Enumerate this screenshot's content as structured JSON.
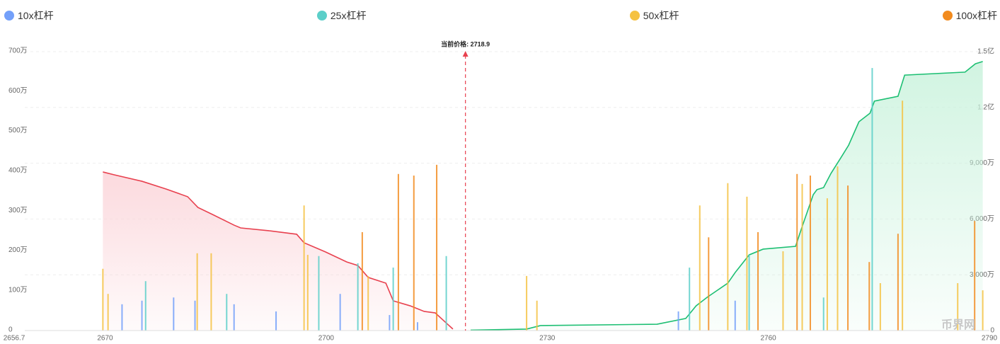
{
  "chart_data": {
    "type": "bar",
    "xlim": [
      2656.7,
      2790
    ],
    "xticks": [
      2656.7,
      2670,
      2700,
      2730,
      2760,
      2790
    ],
    "ylim": [
      0,
      7000000
    ],
    "yticks": [
      0,
      {
        "value": 1000000,
        "label": "100万"
      },
      {
        "value": 2000000,
        "label": "200万"
      },
      {
        "value": 3000000,
        "label": "300万"
      },
      {
        "value": 4000000,
        "label": "400万"
      },
      {
        "value": 5000000,
        "label": "500万"
      },
      {
        "value": 6000000,
        "label": "600万"
      },
      {
        "value": 7000000,
        "label": "700万"
      }
    ],
    "y2lim": [
      0,
      150000000
    ],
    "y2ticks": [
      0,
      {
        "value": 30000000,
        "label": "3,000万"
      },
      {
        "value": 60000000,
        "label": "6,000万"
      },
      {
        "value": 90000000,
        "label": "9,000万"
      },
      {
        "value": 120000000,
        "label": "1.2亿"
      },
      {
        "value": 150000000,
        "label": "1.5亿"
      }
    ],
    "grid": true,
    "annotation": {
      "label": "当前价格: 2718.9",
      "x": 2718.9,
      "color": "#e8414f"
    },
    "watermark": "币界网",
    "series": [
      {
        "name": "10x杠杆",
        "type": "bar",
        "color": "#73a0fa",
        "x": [
          2672.3,
          2675,
          2679.3,
          2682.2,
          2687.5,
          2693.2,
          2701.9,
          2708.6,
          2712.4,
          2747.8,
          2755.5
        ],
        "values": [
          660000,
          750000,
          830000,
          750000,
          660000,
          480000,
          920000,
          390000,
          210000,
          480000,
          750000
        ]
      },
      {
        "name": "25x杠杆",
        "type": "bar",
        "color": "#5ccfc9",
        "x": [
          2675.5,
          2686.5,
          2699,
          2704.3,
          2709.1,
          2716.3,
          2749.3,
          2757.4,
          2767.5,
          2774.1
        ],
        "values": [
          1240000,
          920000,
          1870000,
          1690000,
          1580000,
          1870000,
          1580000,
          1900000,
          830000,
          6590000
        ]
      },
      {
        "name": "50x杠杆",
        "type": "bar",
        "color": "#f5c242",
        "x": [
          2669.7,
          2670.4,
          2682.5,
          2684.4,
          2697,
          2697.5,
          2705.7,
          2727.2,
          2728.6,
          2750.7,
          2754.5,
          2757.1,
          2762,
          2764.6,
          2768,
          2769.4,
          2775.2,
          2778.2,
          2785.7,
          2789.1
        ],
        "values": [
          1550000,
          920000,
          1940000,
          1940000,
          3140000,
          1900000,
          1370000,
          1370000,
          750000,
          3140000,
          3700000,
          3360000,
          1990000,
          3680000,
          3320000,
          4120000,
          1190000,
          5770000,
          1190000,
          1010000
        ]
      },
      {
        "name": "100x杠杆",
        "type": "bar",
        "color": "#f28b1e",
        "x": [
          2704.9,
          2709.8,
          2711.9,
          2715,
          2751.9,
          2758.6,
          2763.9,
          2765.7,
          2770.8,
          2773.7,
          2777.6,
          2788
        ],
        "values": [
          2470000,
          3930000,
          3890000,
          4160000,
          2340000,
          2470000,
          3930000,
          3890000,
          3640000,
          1720000,
          2430000,
          2750000
        ]
      },
      {
        "type": "line",
        "axis": "y2",
        "color": "#e8414f",
        "fill": "#fbd3d8",
        "x": [
          2669.7,
          2671.2,
          2675,
          2678.3,
          2681.2,
          2682.6,
          2684.6,
          2687.5,
          2688.4,
          2692.2,
          2696,
          2697,
          2699.9,
          2702.8,
          2704.3,
          2705.7,
          2708.1,
          2709.1,
          2711.4,
          2713.3,
          2714.8,
          2717.2
        ],
        "values": [
          85300000,
          83800000,
          80300000,
          76100000,
          72000000,
          66200000,
          62400000,
          56700000,
          55200000,
          53700000,
          51800000,
          47200000,
          42300000,
          36900000,
          35000000,
          28600000,
          25500000,
          16000000,
          13300000,
          10300000,
          9500000,
          800000
        ]
      },
      {
        "type": "line",
        "axis": "y2",
        "color": "#1dbf73",
        "fill": "#c9f2dc",
        "x": [
          2719.6,
          2727.2,
          2729.1,
          2744.9,
          2748.8,
          2750.2,
          2751.7,
          2754.5,
          2755.5,
          2757.4,
          2759.3,
          2763.7,
          2764.6,
          2766.1,
          2766.6,
          2767.5,
          2768.5,
          2769.9,
          2770.9,
          2772.3,
          2773.8,
          2774.4,
          2777.6,
          2778.5,
          2786.7,
          2788.1,
          2789.1
        ],
        "values": [
          200000,
          800000,
          2700000,
          3400000,
          6500000,
          13300000,
          17900000,
          25500000,
          31200000,
          40700000,
          43800000,
          45300000,
          56000000,
          73100000,
          75800000,
          76900000,
          84500000,
          93300000,
          99700000,
          112300000,
          116900000,
          123400000,
          126000000,
          137400000,
          139000000,
          143500000,
          144700000
        ]
      }
    ]
  }
}
